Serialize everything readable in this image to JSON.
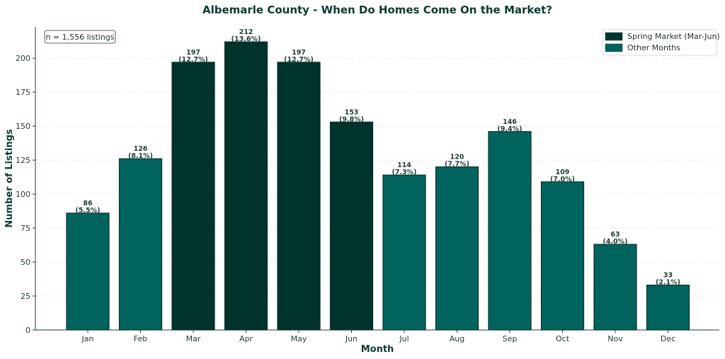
{
  "chart_data": {
    "type": "bar",
    "title": "Albemarle County - When Do Homes Come On the Market?",
    "xlabel": "Month",
    "ylabel": "Number of Listings",
    "categories": [
      "Jan",
      "Feb",
      "Mar",
      "Apr",
      "May",
      "Jun",
      "Jul",
      "Aug",
      "Sep",
      "Oct",
      "Nov",
      "Dec"
    ],
    "values": [
      86,
      126,
      197,
      212,
      197,
      153,
      114,
      120,
      146,
      109,
      63,
      33
    ],
    "percent_labels": [
      "(5.5%)",
      "(8.1%)",
      "(12.7%)",
      "(13.6%)",
      "(12.7%)",
      "(9.8%)",
      "(7.3%)",
      "(7.7%)",
      "(9.4%)",
      "(7.0%)",
      "(4.0%)",
      "(2.1%)"
    ],
    "groups": [
      "other",
      "other",
      "spring",
      "spring",
      "spring",
      "spring",
      "other",
      "other",
      "other",
      "other",
      "other",
      "other"
    ],
    "ylim": [
      0,
      223
    ],
    "yticks": [
      0,
      25,
      50,
      75,
      100,
      125,
      150,
      175,
      200
    ],
    "grid": "horizontal dashed",
    "legend_position": "top-right",
    "legend": [
      {
        "key": "spring",
        "label": "Spring Market (Mar-Jun)",
        "color": "#00332b"
      },
      {
        "key": "other",
        "label": "Other Months",
        "color": "#00635e"
      }
    ],
    "annotation": "n = 1,556 listings"
  }
}
